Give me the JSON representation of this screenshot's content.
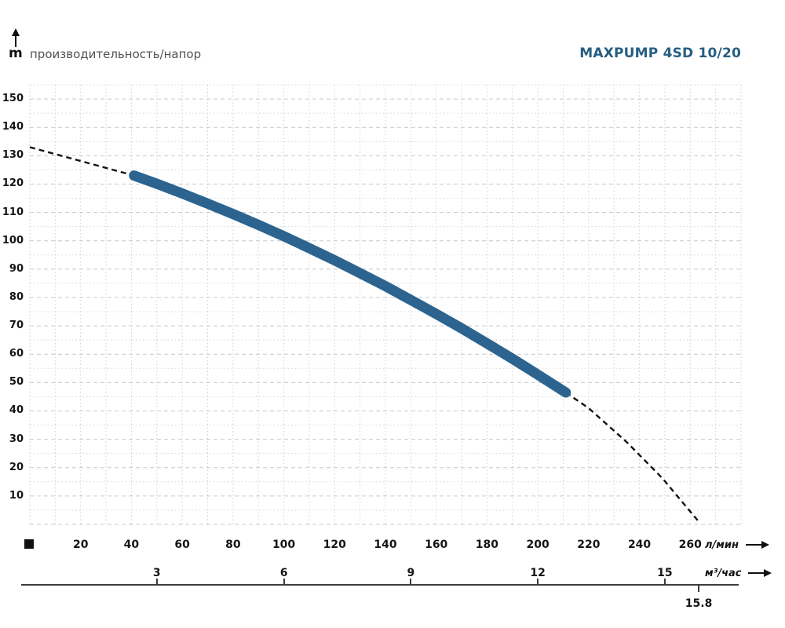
{
  "header": {
    "title": "MAXPUMP 4SD 10/20",
    "subtitle": "производительность/напор"
  },
  "chart_data": {
    "type": "line",
    "title": "MAXPUMP 4SD 10/20",
    "subtitle": "производительность/напор",
    "x_axis_primary": {
      "unit": "л/мин",
      "ticks": [
        20,
        40,
        60,
        80,
        100,
        120,
        140,
        160,
        180,
        200,
        220,
        240,
        260
      ],
      "range": [
        0,
        280
      ]
    },
    "x_axis_secondary": {
      "unit": "м³/час",
      "ticks": [
        3,
        6,
        9,
        12,
        15
      ],
      "lmin_per_unit": 16.6667,
      "max_flow_marker": 15.8
    },
    "y_axis": {
      "unit": "m",
      "label": "напор",
      "ticks": [
        10,
        20,
        30,
        40,
        50,
        60,
        70,
        80,
        90,
        100,
        110,
        120,
        130,
        140,
        150
      ],
      "range": [
        0,
        155
      ]
    },
    "grid": {
      "x_step": 10,
      "y_major_step": 10,
      "y_minor_step": 5,
      "style": "dashed"
    },
    "series": [
      {
        "name": "MAXPUMP 4SD 10/20",
        "color": "#2c648f",
        "points_lmin_head": [
          [
            41,
            123.0
          ],
          [
            50,
            120.1
          ],
          [
            60,
            116.7
          ],
          [
            70,
            113.1
          ],
          [
            80,
            109.4
          ],
          [
            90,
            105.6
          ],
          [
            100,
            101.6
          ],
          [
            110,
            97.4
          ],
          [
            120,
            93.1
          ],
          [
            130,
            88.6
          ],
          [
            140,
            84.0
          ],
          [
            150,
            79.1
          ],
          [
            160,
            74.2
          ],
          [
            170,
            69.1
          ],
          [
            180,
            63.8
          ],
          [
            190,
            58.4
          ],
          [
            200,
            52.8
          ],
          [
            211,
            46.5
          ]
        ]
      }
    ],
    "dashed_extrapolation": [
      {
        "side": "low-flow",
        "points_lmin_head": [
          [
            0,
            133.0
          ],
          [
            41,
            123.0
          ]
        ]
      },
      {
        "side": "high-flow",
        "points_lmin_head": [
          [
            211,
            46.5
          ],
          [
            220,
            41.0
          ],
          [
            235,
            29.0
          ],
          [
            249,
            16.3
          ],
          [
            263.5,
            0.8
          ]
        ]
      }
    ]
  },
  "colors": {
    "curve": "#2c648f",
    "title": "#265e80",
    "dashed": "#141414",
    "grid_major": "#c6cacc",
    "grid_minor": "#d4d7d9",
    "text": "#151515",
    "subtitle_text": "#525252"
  }
}
